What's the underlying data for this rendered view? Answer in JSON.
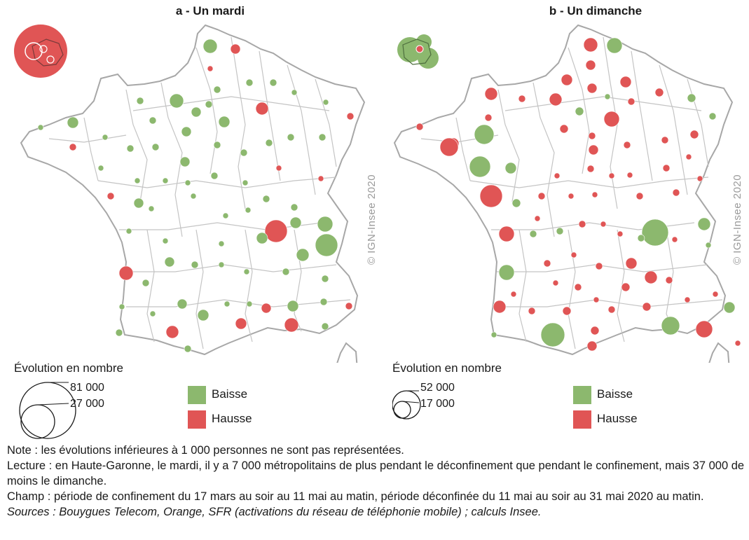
{
  "panels": [
    {
      "title": "a - Un mardi",
      "copyright": "© IGN-Insee 2020",
      "legend_title": "Évolution en nombre",
      "size_large": "81 000",
      "size_small": "27 000"
    },
    {
      "title": "b - Un dimanche",
      "copyright": "© IGN-Insee 2020",
      "legend_title": "Évolution en nombre",
      "size_large": "52 000",
      "size_small": "17 000"
    }
  ],
  "legend_colors": [
    {
      "label": "Baisse",
      "color": "#8cb86e"
    },
    {
      "label": "Hausse",
      "color": "#e05555"
    }
  ],
  "notes": {
    "note": "Note : les évolutions inférieures à 1 000 personnes ne sont pas représentées.",
    "lecture": "Lecture : en Haute-Garonne, le mardi, il y a 7 000 métropolitains de plus pendant le déconfinement que pendant le confinement, mais 37 000 de moins le dimanche.",
    "champ": "Champ : période de confinement du 17 mars au soir au 11 mai au matin, période déconfinée du 11 mai au soir au 31 mai 2020 au matin.",
    "sources": "Sources : Bouygues Telecom, Orange, SFR (activations du réseau de téléphonie mobile) ; calculs Insee."
  }
}
